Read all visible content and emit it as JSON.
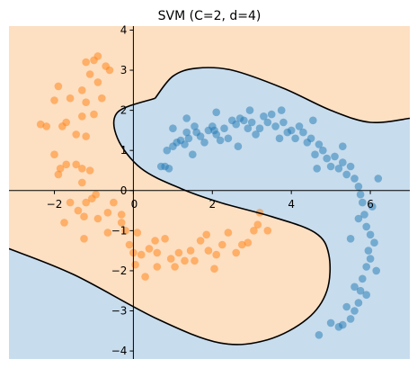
{
  "chart_data": {
    "type": "scatter",
    "title": "SVM (C=2, d=4)",
    "xlabel": "",
    "ylabel": "",
    "xlim": [
      -3.15,
      7.0
    ],
    "ylim": [
      -4.2,
      4.1
    ],
    "x_ticks": [
      -2,
      0,
      2,
      4,
      6
    ],
    "y_ticks": [
      -4,
      -3,
      -2,
      -1,
      0,
      1,
      2,
      3,
      4
    ],
    "x_tick_labels": [
      "−2",
      "0",
      "2",
      "4",
      "6"
    ],
    "y_tick_labels": [
      "−4",
      "−3",
      "−2",
      "−1",
      "0",
      "1",
      "2",
      "3",
      "4"
    ],
    "grid": false,
    "legend": "none",
    "spines": "centered at origin",
    "colors": {
      "region_orange": "#fddfc2",
      "region_blue": "#c7dced",
      "series_orange": "#ff7f0e",
      "series_blue": "#1f77b4",
      "boundary": "#000000"
    },
    "decision_boundary": [
      [
        [
          0.55,
          2.3
        ],
        [
          1.0,
          2.85
        ],
        [
          1.6,
          3.05
        ],
        [
          2.5,
          3.0
        ],
        [
          3.8,
          2.55
        ],
        [
          5.0,
          2.0
        ],
        [
          6.0,
          1.7
        ],
        [
          7.0,
          1.8
        ]
      ],
      [
        [
          0.55,
          2.3
        ],
        [
          -0.4,
          1.95
        ],
        [
          -0.4,
          1.3
        ],
        [
          0.2,
          0.55
        ],
        [
          1.2,
          0.05
        ],
        [
          2.2,
          -0.3
        ],
        [
          3.5,
          -0.65
        ],
        [
          4.6,
          -1.05
        ],
        [
          4.95,
          -1.6
        ],
        [
          4.9,
          -2.5
        ],
        [
          4.4,
          -3.2
        ],
        [
          3.4,
          -3.72
        ],
        [
          2.2,
          -3.8
        ],
        [
          0.6,
          -3.2
        ],
        [
          -1.5,
          -2.1
        ],
        [
          -3.15,
          -1.45
        ]
      ]
    ],
    "series": [
      {
        "label_class": 0,
        "color": "#1f77b4",
        "points": [
          [
            0.7,
            0.6
          ],
          [
            0.8,
            0.6
          ],
          [
            0.85,
            1.0
          ],
          [
            0.9,
            0.55
          ],
          [
            1.0,
            1.1
          ],
          [
            1.1,
            1.2
          ],
          [
            1.2,
            1.25
          ],
          [
            1.3,
            1.15
          ],
          [
            1.35,
            1.45
          ],
          [
            1.4,
            1.3
          ],
          [
            1.5,
            0.9
          ],
          [
            1.55,
            1.6
          ],
          [
            1.6,
            1.45
          ],
          [
            1.7,
            1.35
          ],
          [
            1.8,
            1.2
          ],
          [
            1.9,
            1.5
          ],
          [
            2.0,
            1.6
          ],
          [
            2.05,
            1.5
          ],
          [
            2.1,
            1.4
          ],
          [
            2.2,
            1.25
          ],
          [
            2.3,
            1.55
          ],
          [
            2.4,
            1.3
          ],
          [
            2.5,
            1.75
          ],
          [
            2.6,
            1.65
          ],
          [
            2.65,
            1.1
          ],
          [
            2.7,
            1.8
          ],
          [
            2.8,
            1.75
          ],
          [
            2.9,
            1.55
          ],
          [
            3.0,
            1.7
          ],
          [
            3.1,
            1.4
          ],
          [
            3.2,
            1.55
          ],
          [
            3.3,
            1.85
          ],
          [
            3.4,
            1.7
          ],
          [
            3.5,
            1.9
          ],
          [
            3.6,
            1.6
          ],
          [
            3.7,
            1.3
          ],
          [
            3.8,
            1.7
          ],
          [
            3.9,
            1.45
          ],
          [
            4.0,
            1.5
          ],
          [
            4.1,
            1.3
          ],
          [
            4.2,
            1.6
          ],
          [
            4.3,
            1.45
          ],
          [
            4.4,
            1.2
          ],
          [
            4.5,
            1.3
          ],
          [
            4.6,
            0.9
          ],
          [
            4.7,
            1.15
          ],
          [
            4.8,
            1.0
          ],
          [
            4.9,
            0.8
          ],
          [
            5.0,
            0.6
          ],
          [
            5.1,
            0.85
          ],
          [
            5.2,
            0.55
          ],
          [
            5.3,
            0.7
          ],
          [
            5.4,
            0.4
          ],
          [
            5.5,
            0.6
          ],
          [
            5.6,
            0.3
          ],
          [
            5.7,
            0.1
          ],
          [
            5.75,
            -0.1
          ],
          [
            5.8,
            -0.3
          ],
          [
            5.85,
            -0.6
          ],
          [
            5.9,
            -0.9
          ],
          [
            6.0,
            -1.1
          ],
          [
            6.1,
            -1.3
          ],
          [
            5.95,
            -1.5
          ],
          [
            6.0,
            -1.7
          ],
          [
            5.9,
            -1.9
          ],
          [
            5.8,
            -2.2
          ],
          [
            5.75,
            -2.5
          ],
          [
            5.7,
            -2.8
          ],
          [
            5.6,
            -3.0
          ],
          [
            5.5,
            -3.2
          ],
          [
            5.3,
            -3.35
          ],
          [
            5.2,
            -3.4
          ],
          [
            5.0,
            -3.3
          ],
          [
            5.7,
            -0.7
          ],
          [
            5.5,
            -1.2
          ],
          [
            5.6,
            -2.4
          ],
          [
            5.4,
            -2.9
          ],
          [
            5.9,
            -2.6
          ],
          [
            6.05,
            -0.4
          ],
          [
            6.2,
            0.3
          ],
          [
            5.3,
            1.1
          ],
          [
            4.55,
            1.75
          ],
          [
            3.75,
            2.0
          ],
          [
            2.95,
            2.0
          ],
          [
            2.1,
            1.95
          ],
          [
            1.35,
            1.8
          ],
          [
            1.0,
            1.55
          ],
          [
            4.65,
            0.55
          ],
          [
            6.15,
            -2.0
          ],
          [
            4.7,
            -3.6
          ]
        ]
      },
      {
        "label_class": 1,
        "color": "#ff7f0e",
        "points": [
          [
            -1.2,
            3.2
          ],
          [
            -1.0,
            3.25
          ],
          [
            -0.9,
            3.35
          ],
          [
            -1.1,
            2.9
          ],
          [
            -1.3,
            2.5
          ],
          [
            -0.9,
            2.7
          ],
          [
            -0.7,
            3.1
          ],
          [
            -0.8,
            2.3
          ],
          [
            -0.6,
            3.0
          ],
          [
            -1.9,
            2.6
          ],
          [
            -2.0,
            2.25
          ],
          [
            -1.6,
            2.3
          ],
          [
            -1.3,
            1.85
          ],
          [
            -1.2,
            2.2
          ],
          [
            -1.7,
            1.7
          ],
          [
            -1.45,
            1.4
          ],
          [
            -1.0,
            1.9
          ],
          [
            -1.2,
            1.35
          ],
          [
            -2.2,
            1.6
          ],
          [
            -2.35,
            1.65
          ],
          [
            -1.8,
            1.6
          ],
          [
            -2.0,
            0.9
          ],
          [
            -1.85,
            0.55
          ],
          [
            -1.7,
            0.65
          ],
          [
            -1.9,
            0.4
          ],
          [
            -1.45,
            0.65
          ],
          [
            -1.3,
            0.55
          ],
          [
            -1.3,
            0.2
          ],
          [
            -1.1,
            0.5
          ],
          [
            -1.05,
            -0.2
          ],
          [
            -0.95,
            -0.1
          ],
          [
            -1.4,
            -0.5
          ],
          [
            -1.2,
            -0.3
          ],
          [
            -1.6,
            -0.3
          ],
          [
            -1.75,
            -0.8
          ],
          [
            -1.25,
            -0.65
          ],
          [
            -0.9,
            -0.7
          ],
          [
            -0.65,
            -0.55
          ],
          [
            -0.5,
            -0.3
          ],
          [
            -0.3,
            -0.8
          ],
          [
            -0.2,
            -1.0
          ],
          [
            -0.1,
            -1.35
          ],
          [
            0.0,
            -1.55
          ],
          [
            0.05,
            -1.85
          ],
          [
            0.2,
            -1.6
          ],
          [
            0.3,
            -2.15
          ],
          [
            0.4,
            -1.45
          ],
          [
            0.55,
            -1.25
          ],
          [
            0.6,
            -1.55
          ],
          [
            0.8,
            -1.2
          ],
          [
            0.95,
            -1.7
          ],
          [
            1.05,
            -1.9
          ],
          [
            1.15,
            -1.55
          ],
          [
            1.3,
            -1.75
          ],
          [
            1.45,
            -1.5
          ],
          [
            1.55,
            -1.75
          ],
          [
            1.7,
            -1.25
          ],
          [
            1.85,
            -1.1
          ],
          [
            1.9,
            -1.5
          ],
          [
            2.05,
            -1.95
          ],
          [
            2.1,
            -1.6
          ],
          [
            2.25,
            -1.35
          ],
          [
            2.4,
            -1.05
          ],
          [
            2.6,
            -1.55
          ],
          [
            2.75,
            -1.35
          ],
          [
            2.9,
            -1.3
          ],
          [
            3.05,
            -1.0
          ],
          [
            3.15,
            -0.85
          ],
          [
            3.2,
            -0.55
          ],
          [
            -1.25,
            -1.2
          ],
          [
            0.1,
            -1.05
          ],
          [
            3.4,
            -1.0
          ],
          [
            -0.65,
            -1.05
          ],
          [
            0.6,
            -1.9
          ],
          [
            -0.3,
            -0.6
          ]
        ]
      }
    ]
  }
}
